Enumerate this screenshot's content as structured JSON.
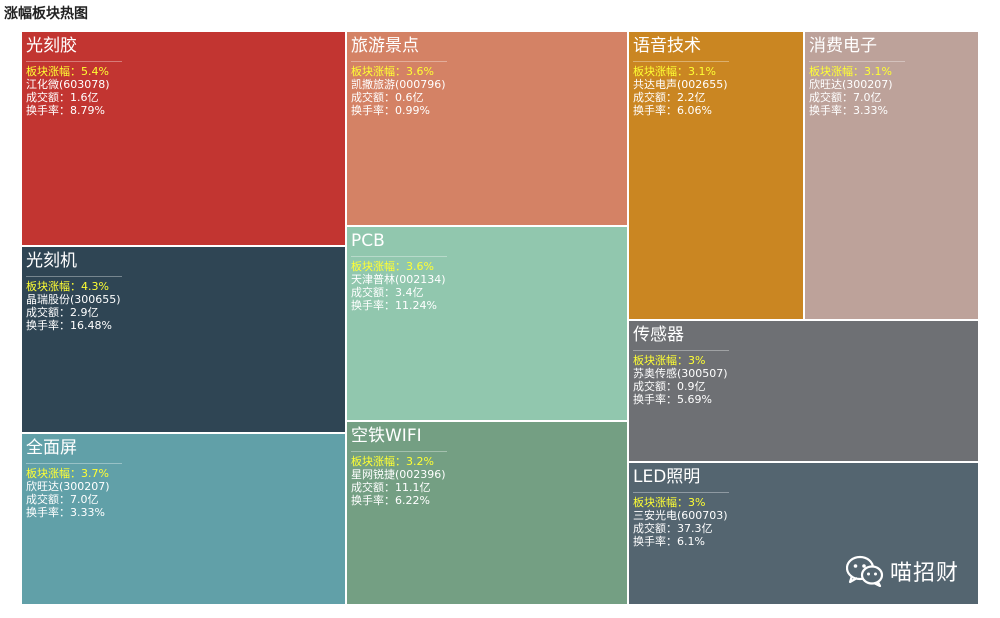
{
  "title": "涨幅板块热图",
  "labels": {
    "change_prefix": "板块涨幅：",
    "volume_prefix": "成交额：",
    "turnover_prefix": "换手率："
  },
  "watermark": {
    "text": "喵招财",
    "icon": "wechat-icon"
  },
  "chart_data": {
    "type": "treemap",
    "title": "涨幅板块热图",
    "sectors": [
      {
        "name": "光刻胶",
        "change": "5.4%",
        "stock": "江化微(603078)",
        "volume": "1.6亿",
        "turnover": "8.79%",
        "color": "#c23531"
      },
      {
        "name": "光刻机",
        "change": "4.3%",
        "stock": "晶瑞股份(300655)",
        "volume": "2.9亿",
        "turnover": "16.48%",
        "color": "#2f4554"
      },
      {
        "name": "全面屏",
        "change": "3.7%",
        "stock": "欣旺达(300207)",
        "volume": "7.0亿",
        "turnover": "3.33%",
        "color": "#61a0a8"
      },
      {
        "name": "旅游景点",
        "change": "3.6%",
        "stock": "凯撒旅游(000796)",
        "volume": "0.6亿",
        "turnover": "0.99%",
        "color": "#d48265"
      },
      {
        "name": "PCB",
        "change": "3.6%",
        "stock": "天津普林(002134)",
        "volume": "3.4亿",
        "turnover": "11.24%",
        "color": "#91c7ae"
      },
      {
        "name": "空铁WIFI",
        "change": "3.2%",
        "stock": "星网锐捷(002396)",
        "volume": "11.1亿",
        "turnover": "6.22%",
        "color": "#749f83"
      },
      {
        "name": "语音技术",
        "change": "3.1%",
        "stock": "共达电声(002655)",
        "volume": "2.2亿",
        "turnover": "6.06%",
        "color": "#ca8622"
      },
      {
        "name": "消费电子",
        "change": "3.1%",
        "stock": "欣旺达(300207)",
        "volume": "7.0亿",
        "turnover": "3.33%",
        "color": "#bda29a"
      },
      {
        "name": "传感器",
        "change": "3%",
        "stock": "苏奥传感(300507)",
        "volume": "0.9亿",
        "turnover": "5.69%",
        "color": "#6e7074"
      },
      {
        "name": "LED照明",
        "change": "3%",
        "stock": "三安光电(600703)",
        "volume": "37.3亿",
        "turnover": "6.1%",
        "color": "#546570"
      }
    ]
  }
}
